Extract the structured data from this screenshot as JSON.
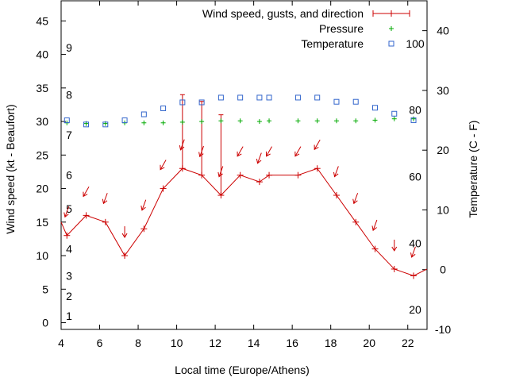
{
  "chart_data": {
    "type": "line",
    "title": "",
    "xlabel": "Local time (Europe/Athens)",
    "ylabel_left": "Wind speed (kt - Beaufort)",
    "ylabel_right": "Temperature (C - F)",
    "xlim": [
      4,
      23
    ],
    "ylim_left": [
      -1,
      48
    ],
    "ylim_right": [
      -10,
      45
    ],
    "x_ticks": [
      4,
      6,
      8,
      10,
      12,
      14,
      16,
      18,
      20,
      22
    ],
    "y_left_ticks": [
      0,
      5,
      10,
      15,
      20,
      25,
      30,
      35,
      40,
      45
    ],
    "y_right_ticks": [
      -10,
      0,
      10,
      20,
      30,
      40
    ],
    "beaufort_labels": [
      {
        "text": "1",
        "y": 1
      },
      {
        "text": "2",
        "y": 4
      },
      {
        "text": "3",
        "y": 7
      },
      {
        "text": "4",
        "y": 11
      },
      {
        "text": "5",
        "y": 17
      },
      {
        "text": "6",
        "y": 22
      },
      {
        "text": "7",
        "y": 28
      },
      {
        "text": "8",
        "y": 34
      },
      {
        "text": "9",
        "y": 41
      }
    ],
    "fahrenheit_labels": [
      {
        "text": "20",
        "c": -6.7
      },
      {
        "text": "40",
        "c": 4.4
      },
      {
        "text": "60",
        "c": 15.6
      },
      {
        "text": "80",
        "c": 26.7
      },
      {
        "text": "100",
        "c": 37.8
      }
    ],
    "legend_position": "top-right",
    "series": [
      {
        "name": "Wind speed, gusts, and direction",
        "color": "#cc0000",
        "x": [
          4.3,
          5.3,
          6.3,
          7.3,
          8.3,
          9.3,
          10.3,
          11.3,
          12.3,
          13.3,
          14.3,
          14.8,
          16.3,
          17.3,
          18.3,
          19.3,
          20.3,
          21.3,
          22.3
        ],
        "speed": [
          13,
          16,
          15,
          10,
          14,
          20,
          23,
          22,
          19,
          22,
          21,
          22,
          22,
          23,
          19,
          15,
          11,
          8,
          7
        ],
        "gust": [
          null,
          null,
          null,
          null,
          null,
          null,
          34,
          33,
          31,
          null,
          null,
          null,
          null,
          null,
          null,
          null,
          null,
          null,
          null
        ],
        "direction_deg": [
          20,
          30,
          20,
          0,
          20,
          30,
          20,
          20,
          20,
          30,
          20,
          30,
          30,
          30,
          20,
          20,
          20,
          0,
          20
        ]
      },
      {
        "name": "Pressure",
        "color": "#00aa00",
        "x": [
          4.3,
          5.3,
          6.3,
          7.3,
          8.3,
          9.3,
          10.3,
          11.3,
          12.3,
          13.3,
          14.3,
          14.8,
          16.3,
          17.3,
          18.3,
          19.3,
          20.3,
          21.3,
          22.3
        ],
        "values": [
          29.8,
          29.7,
          29.7,
          29.8,
          29.8,
          29.8,
          29.9,
          30.0,
          30.1,
          30.1,
          30.0,
          30.1,
          30.1,
          30.1,
          30.1,
          30.1,
          30.2,
          30.4,
          30.4
        ]
      },
      {
        "name": "Temperature",
        "color": "#3366cc",
        "x": [
          4.3,
          5.3,
          6.3,
          7.3,
          8.3,
          9.3,
          10.3,
          11.3,
          12.3,
          13.3,
          14.3,
          14.8,
          16.3,
          17.3,
          18.3,
          19.3,
          20.3,
          21.3,
          22.3
        ],
        "values": [
          25,
          24.3,
          24.3,
          25,
          26,
          27,
          28,
          28,
          28.8,
          28.8,
          28.8,
          28.8,
          28.8,
          28.8,
          28.1,
          28.1,
          27.1,
          26.1,
          25
        ]
      }
    ]
  }
}
